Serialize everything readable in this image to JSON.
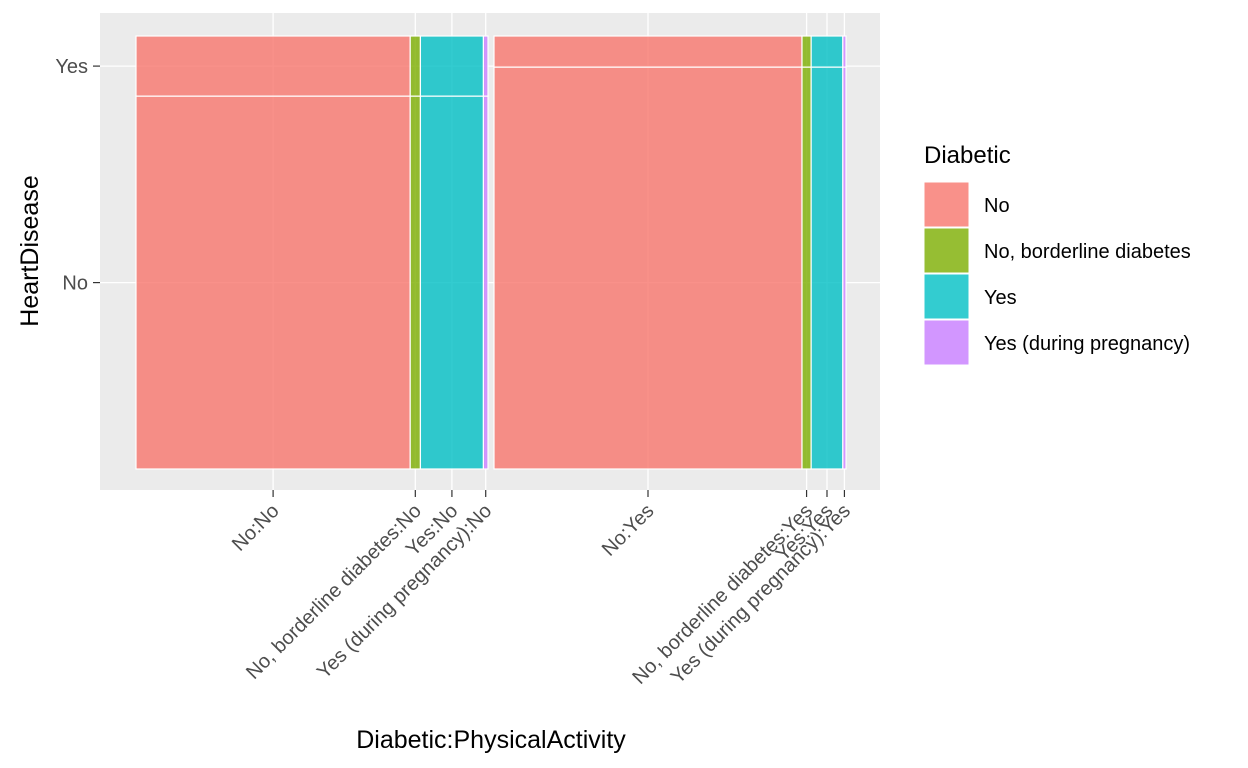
{
  "chart_data": {
    "type": "mosaic",
    "xlabel": "Diabetic:PhysicalActivity",
    "ylabel": "HeartDisease",
    "x_tick_labels": [
      "No:No",
      "No, borderline diabetes:No",
      "Yes:No",
      "Yes (during pregnancy):No",
      "No:Yes",
      "No, borderline diabetes:Yes",
      "Yes:Yes",
      "Yes (during pregnancy):Yes"
    ],
    "y_tick_labels": [
      "No",
      "Yes"
    ],
    "legend": {
      "title": "Diabetic",
      "entries": [
        {
          "label": "No",
          "color": "#F8766D"
        },
        {
          "label": "No, borderline diabetes",
          "color": "#7CAE00"
        },
        {
          "label": "Yes",
          "color": "#00BFC4"
        },
        {
          "label": "Yes (during pregnancy)",
          "color": "#C77CFF"
        }
      ]
    },
    "grid": true,
    "legend_position": "right",
    "groups": [
      {
        "physical_activity": "No",
        "share": 0.5,
        "segments": [
          {
            "diabetic": "No",
            "share": 0.779,
            "heart_disease_yes": 0.139,
            "heart_disease_no": 0.861
          },
          {
            "diabetic": "No, borderline diabetes",
            "share": 0.029,
            "heart_disease_yes": 0.139,
            "heart_disease_no": 0.861
          },
          {
            "diabetic": "Yes",
            "share": 0.179,
            "heart_disease_yes": 0.139,
            "heart_disease_no": 0.861
          },
          {
            "diabetic": "Yes (during pregnancy)",
            "share": 0.013,
            "heart_disease_yes": 0.139,
            "heart_disease_no": 0.861
          }
        ]
      },
      {
        "physical_activity": "Yes",
        "share": 0.5,
        "segments": [
          {
            "diabetic": "No",
            "share": 0.875,
            "heart_disease_yes": 0.072,
            "heart_disease_no": 0.928
          },
          {
            "diabetic": "No, borderline diabetes",
            "share": 0.026,
            "heart_disease_yes": 0.072,
            "heart_disease_no": 0.928
          },
          {
            "diabetic": "Yes",
            "share": 0.09,
            "heart_disease_yes": 0.072,
            "heart_disease_no": 0.928
          },
          {
            "diabetic": "Yes (during pregnancy)",
            "share": 0.009,
            "heart_disease_yes": 0.072,
            "heart_disease_no": 0.928
          }
        ]
      }
    ]
  }
}
